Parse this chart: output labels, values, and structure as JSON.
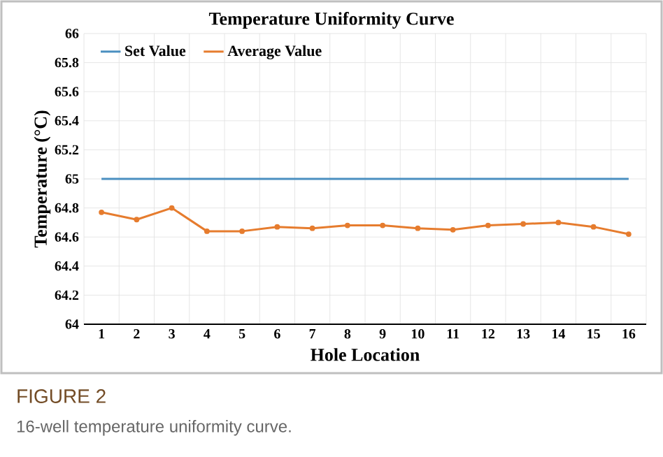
{
  "chart_data": {
    "type": "line",
    "title": "Temperature Uniformity Curve",
    "xlabel": "Hole Location",
    "ylabel": "Temperature (°C)",
    "categories": [
      "1",
      "2",
      "3",
      "4",
      "5",
      "6",
      "7",
      "8",
      "9",
      "10",
      "11",
      "12",
      "13",
      "14",
      "15",
      "16"
    ],
    "series": [
      {
        "name": "Set Value",
        "color": "#4a8fc0",
        "marker": "none",
        "values": [
          65,
          65,
          65,
          65,
          65,
          65,
          65,
          65,
          65,
          65,
          65,
          65,
          65,
          65,
          65,
          65
        ]
      },
      {
        "name": "Average Value",
        "color": "#e67c2e",
        "values": [
          64.77,
          64.72,
          64.8,
          64.64,
          64.64,
          64.67,
          64.66,
          64.68,
          64.68,
          64.66,
          64.65,
          64.68,
          64.69,
          64.7,
          64.67,
          64.62
        ]
      }
    ],
    "ylim": [
      64,
      66
    ],
    "yticks": [
      64,
      64.2,
      64.4,
      64.6,
      64.8,
      65,
      65.2,
      65.4,
      65.6,
      65.8,
      66
    ],
    "grid": true,
    "legend": "top left",
    "marker": "circle",
    "line_style": "solid",
    "annotations": [
      "FIGURE 2",
      "16-well temperature uniformity curve."
    ]
  }
}
